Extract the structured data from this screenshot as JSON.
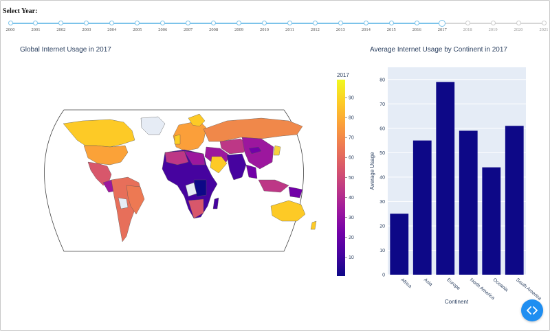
{
  "slider": {
    "label": "Select Year:",
    "years": [
      "2000",
      "2001",
      "2002",
      "2003",
      "2004",
      "2005",
      "2006",
      "2007",
      "2008",
      "2009",
      "2010",
      "2011",
      "2012",
      "2013",
      "2014",
      "2015",
      "2016",
      "2017",
      "2018",
      "2019",
      "2020",
      "2021"
    ],
    "selected": "2017",
    "active_color": "#7cc3ea"
  },
  "map": {
    "title": "Global Internet Usage in 2017",
    "colorbar_title": "2017",
    "colorbar_ticks": [
      "10",
      "20",
      "30",
      "40",
      "50",
      "60",
      "70",
      "80",
      "90"
    ],
    "colorscale": [
      "#0d0887",
      "#46039f",
      "#7201a8",
      "#9c179e",
      "#bd3786",
      "#d8576b",
      "#ed7953",
      "#fb9f3a",
      "#fdca26",
      "#f0f921"
    ]
  },
  "bar_chart": {
    "title": "Average Internet Usage by Continent in 2017"
  },
  "chart_data": {
    "type": "bar",
    "title": "Average Internet Usage by Continent in 2017",
    "categories": [
      "Africa",
      "Asia",
      "Europe",
      "North America",
      "Oceania",
      "South America"
    ],
    "values": [
      25,
      55,
      79,
      59,
      44,
      61
    ],
    "xlabel": "Continent",
    "ylabel": "Average Usage",
    "ylim": [
      0,
      85
    ],
    "yticks": [
      "0",
      "10",
      "20",
      "30",
      "40",
      "50",
      "60",
      "70",
      "80"
    ],
    "bar_color": "#0d0887",
    "plot_bg": "#e5ecf6",
    "grid": true
  },
  "fab": {
    "icon": "code-brackets-icon",
    "color": "#1f8ef1"
  }
}
